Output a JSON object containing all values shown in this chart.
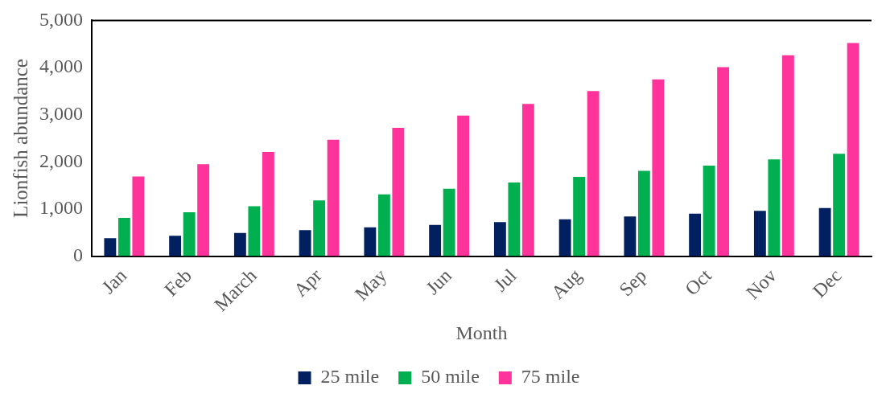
{
  "chart_data": {
    "type": "bar",
    "xlabel": "Month",
    "ylabel": "Lionfish abundance",
    "categories": [
      "Jan",
      "Feb",
      "March",
      "Apr",
      "May",
      "Jun",
      "Jul",
      "Aug",
      "Sep",
      "Oct",
      "Nov",
      "Dec"
    ],
    "series": [
      {
        "name": "25 mile",
        "color": "#002060",
        "values": [
          380,
          430,
          490,
          550,
          610,
          660,
          720,
          780,
          840,
          900,
          960,
          1020
        ]
      },
      {
        "name": "50 mile",
        "color": "#00b050",
        "values": [
          810,
          930,
          1060,
          1180,
          1310,
          1430,
          1560,
          1680,
          1810,
          1920,
          2050,
          2170
        ]
      },
      {
        "name": "75 mile",
        "color": "#ff3399",
        "values": [
          1690,
          1950,
          2210,
          2470,
          2720,
          2980,
          3230,
          3500,
          3750,
          4010,
          4260,
          4520
        ]
      }
    ],
    "ylim": [
      0,
      5000
    ],
    "yticks": [
      0,
      {
        "value": 1000,
        "label": "1,000"
      },
      {
        "value": 2000,
        "label": "2,000"
      },
      {
        "value": 3000,
        "label": "3,000"
      },
      {
        "value": 4000,
        "label": "4,000"
      },
      {
        "value": 5000,
        "label": "5,000"
      }
    ],
    "grid": false,
    "legend": "bottom"
  }
}
